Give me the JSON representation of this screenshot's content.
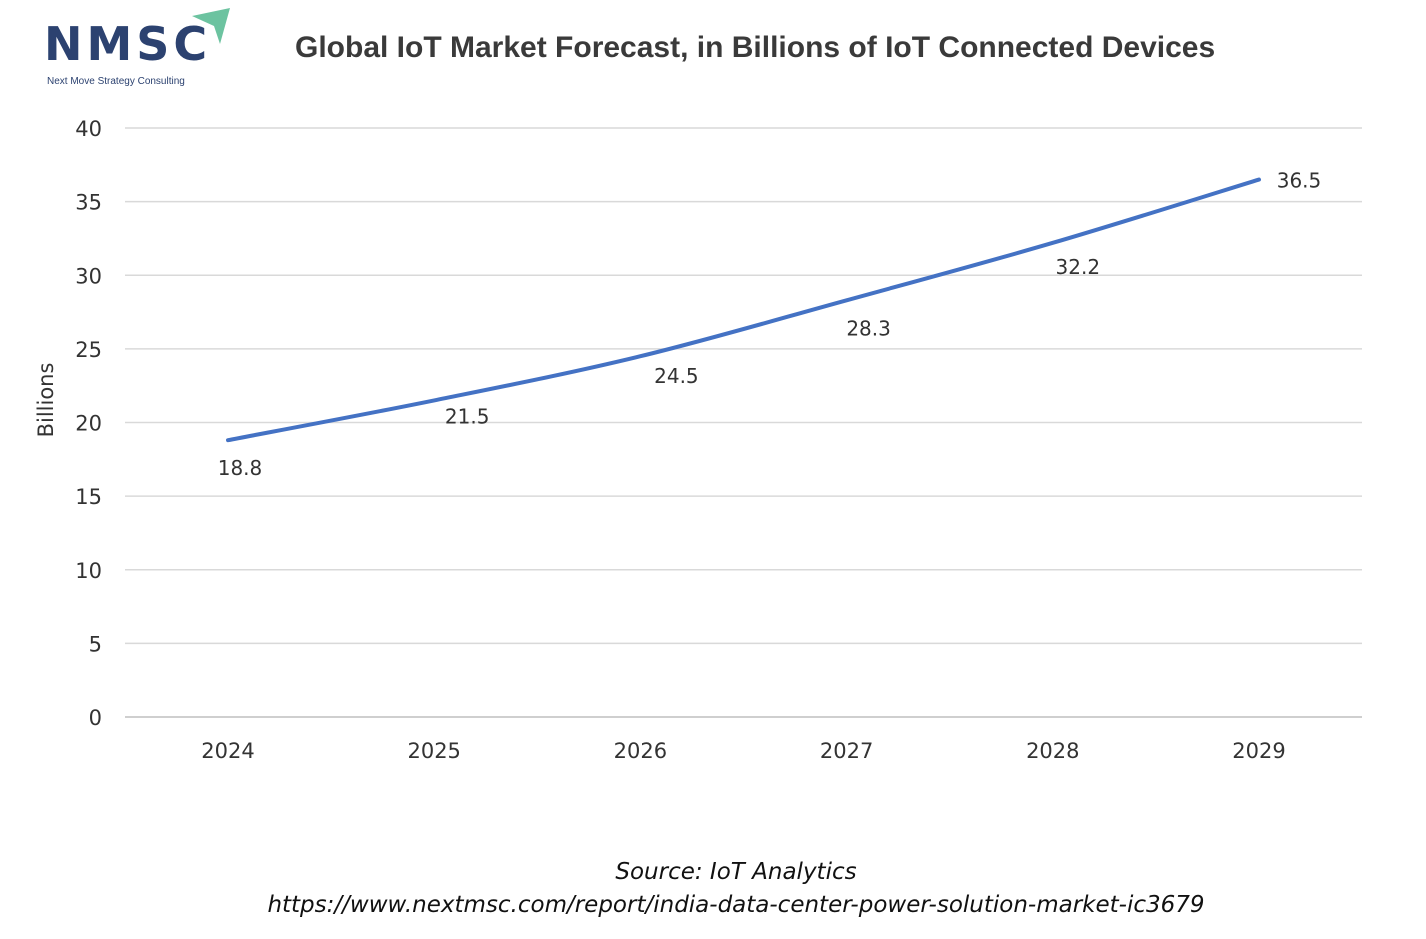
{
  "logo": {
    "text": "NMSC",
    "tagline": "Next Move Strategy Consulting",
    "color": "#2c4270",
    "accent": "#6cc3a0"
  },
  "title": "Global IoT Market Forecast, in Billions of IoT Connected Devices",
  "source": {
    "line1": "Source: IoT Analytics",
    "line2": "https://www.nextmsc.com/report/india-data-center-power-solution-market-ic3679"
  },
  "chart_data": {
    "type": "line",
    "title": "Global IoT Market Forecast, in Billions of IoT Connected Devices",
    "xlabel": "",
    "ylabel": "Billions",
    "categories": [
      "2024",
      "2025",
      "2026",
      "2027",
      "2028",
      "2029"
    ],
    "values": [
      18.8,
      21.5,
      24.5,
      28.3,
      32.2,
      36.5
    ],
    "data_labels": [
      "18.8",
      "21.5",
      "24.5",
      "28.3",
      "32.2",
      "36.5"
    ],
    "ylim": [
      0,
      40
    ],
    "yticks": [
      0,
      5,
      10,
      15,
      20,
      25,
      30,
      35,
      40
    ],
    "grid": true,
    "legend": "none",
    "line_color": "#4472c4"
  }
}
